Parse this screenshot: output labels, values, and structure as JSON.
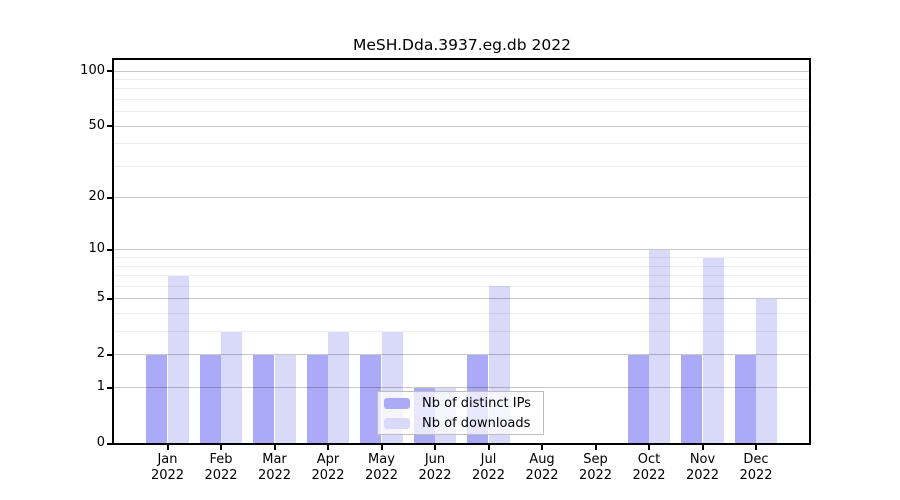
{
  "title": "MeSH.Dda.3937.eg.db 2022",
  "chart_data": {
    "type": "bar",
    "title": "MeSH.Dda.3937.eg.db 2022",
    "scale": "log1p",
    "grid": true,
    "legend_position": "bottom-center-inside",
    "categories": [
      "Jan",
      "Feb",
      "Mar",
      "Apr",
      "May",
      "Jun",
      "Jul",
      "Aug",
      "Sep",
      "Oct",
      "Nov",
      "Dec"
    ],
    "year_label": "2022",
    "series": [
      {
        "name": "Nb of distinct IPs",
        "color": "#abaaf8",
        "values": [
          2,
          2,
          2,
          2,
          2,
          1,
          2,
          0,
          0,
          2,
          2,
          2
        ]
      },
      {
        "name": "Nb of downloads",
        "color": "#d9d9fa",
        "values": [
          7,
          3,
          2,
          3,
          3,
          1,
          6,
          0,
          0,
          10,
          9,
          5
        ]
      }
    ],
    "xlabel": "",
    "ylabel": "",
    "y_ticks": [
      0,
      1,
      2,
      5,
      10,
      20,
      50,
      100
    ],
    "y_minor_gridlines": [
      3,
      4,
      6,
      7,
      8,
      9,
      30,
      40,
      60,
      70,
      80,
      90
    ],
    "ylim": [
      0,
      115
    ]
  },
  "colors": {
    "background": "#ffffff",
    "axis": "#000000",
    "major_grid": "#c7c7c7",
    "minor_grid": "#ededed",
    "bar_distinct_ips": "#abaaf8",
    "bar_downloads": "#d9d9fa",
    "legend_border": "#bdbdbd"
  }
}
